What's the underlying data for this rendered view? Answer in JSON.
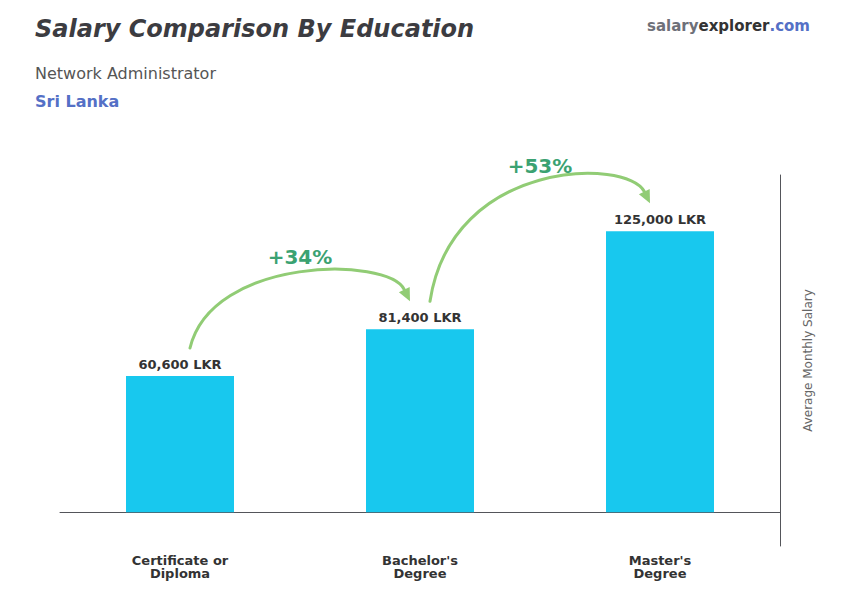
{
  "chart_data": {
    "type": "bar",
    "title": "Salary Comparison By Education",
    "subtitle": "Network Administrator",
    "annotations": {
      "country": "Sri Lanka",
      "watermark": [
        "salary",
        "explorer",
        ".com"
      ],
      "changes": [
        "+34%",
        "+53%"
      ]
    },
    "ylabel": "Average Monthly Salary",
    "categories": [
      "Certificate or\nDiploma",
      "Bachelor's\nDegree",
      "Master's\nDegree"
    ],
    "values": [
      60600,
      81400,
      125000
    ],
    "value_labels": [
      "60,600 LKR",
      "81,400 LKR",
      "125,000 LKR"
    ],
    "data_labels": true,
    "color": "#18c8ee",
    "ylim": [
      -15000,
      150000
    ],
    "tick_labels": "x",
    "grid": false
  }
}
